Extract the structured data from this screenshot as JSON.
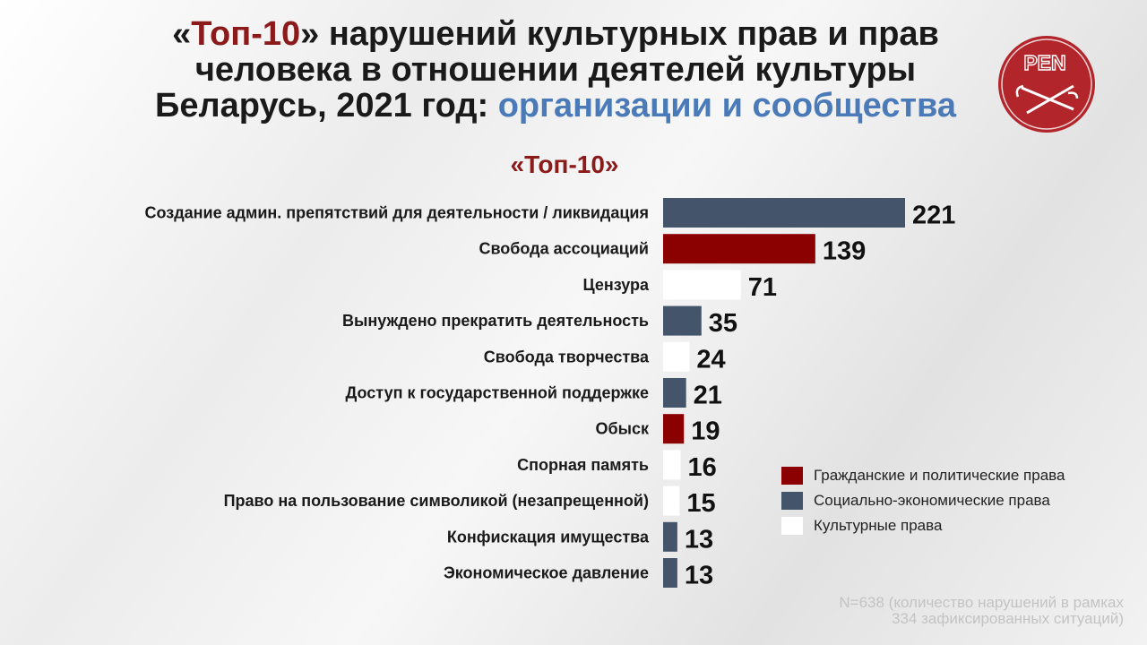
{
  "header": {
    "title_open": "«",
    "title_highlight": "Топ-10",
    "title_rest1": "» нарушений культурных прав и прав",
    "title_line2": "человека в отношении деятелей культуры",
    "title_line3_prefix": "Беларусь, 2021 год:",
    "title_line3_accent": "организации и сообщества",
    "logo_text": "PEN"
  },
  "chart_data": {
    "type": "bar",
    "orientation": "horizontal",
    "title": "«Топ-10»",
    "categories": [
      "Создание админ. препятствий для деятельности / ликвидация",
      "Свобода ассоциаций",
      "Цензура",
      "Вынуждено прекратить деятельность",
      "Свобода творчества",
      "Доступ к государственной поддержке",
      "Обыск",
      "Спорная память",
      "Право на пользование символикой (незапрещенной)",
      "Конфискация имущества",
      "Экономическое давление"
    ],
    "values": [
      221,
      139,
      71,
      35,
      24,
      21,
      19,
      16,
      15,
      13,
      13
    ],
    "groups": [
      "socio",
      "civil",
      "cultural",
      "socio",
      "cultural",
      "socio",
      "civil",
      "cultural",
      "cultural",
      "socio",
      "socio"
    ],
    "legend": [
      {
        "key": "civil",
        "label": "Гражданские и политические права",
        "color": "#8b0000"
      },
      {
        "key": "socio",
        "label": "Социально-экономические права",
        "color": "#44546a"
      },
      {
        "key": "cultural",
        "label": "Культурные права",
        "color": "#ffffff"
      }
    ],
    "legend_position": "right",
    "grid": false
  },
  "footnote": {
    "line1": "N=638 (количество нарушений в рамках",
    "line2": "334 зафиксированных ситуаций)"
  },
  "colors": {
    "accent_red": "#8b1a1a",
    "accent_blue": "#4a7ab8",
    "logo_red": "#b2252b"
  }
}
